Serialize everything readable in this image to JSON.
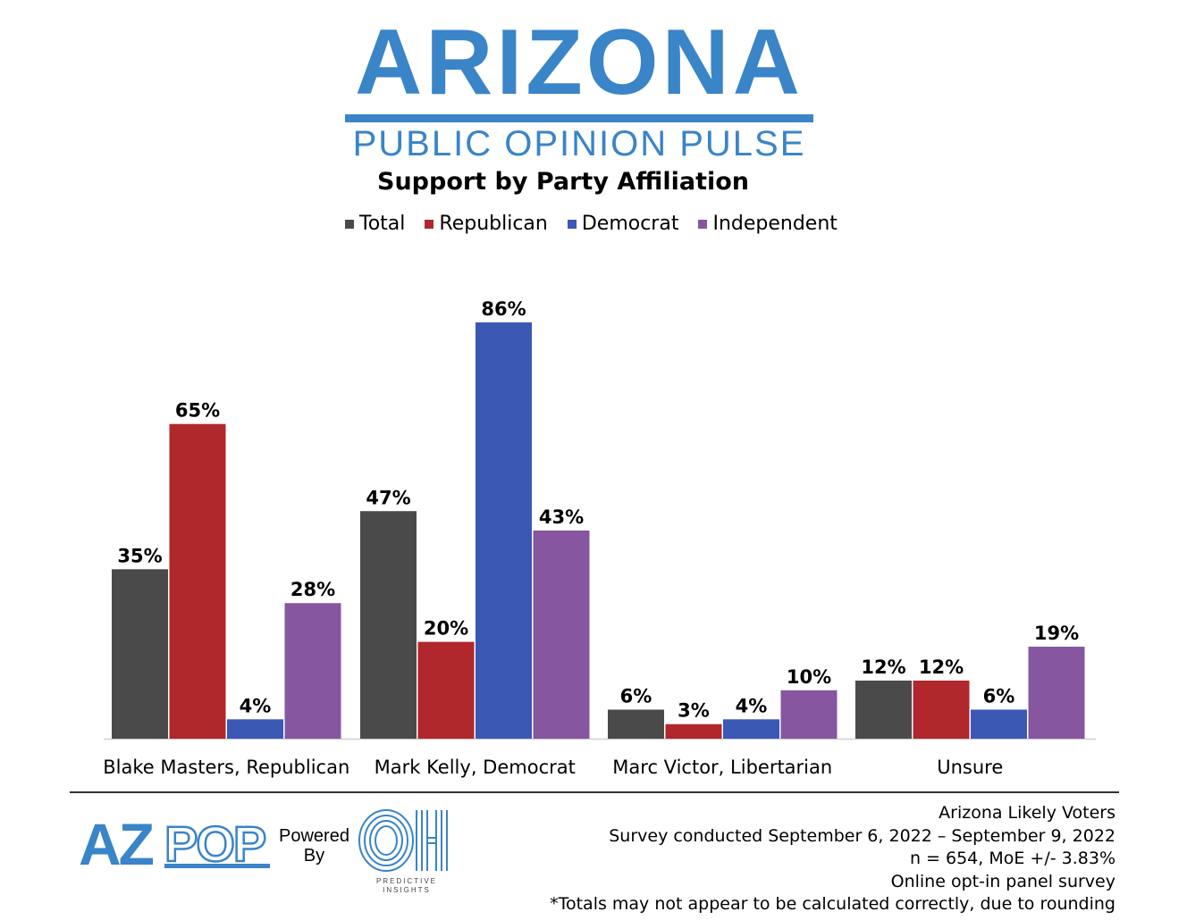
{
  "brand": {
    "title": "ARIZONA",
    "subtitle": "PUBLIC OPINION PULSE",
    "color": "#3a84c8"
  },
  "chart_title": "Support by Party Affiliation",
  "chart_data": {
    "type": "bar",
    "categories": [
      "Blake Masters, Republican",
      "Mark Kelly, Democrat",
      "Marc Victor, Libertarian",
      "Unsure"
    ],
    "series": [
      {
        "name": "Total",
        "color": "#4a4a4a",
        "values": [
          35,
          47,
          6,
          12
        ]
      },
      {
        "name": "Republican",
        "color": "#b0272c",
        "values": [
          65,
          20,
          3,
          12
        ]
      },
      {
        "name": "Democrat",
        "color": "#3a58b4",
        "values": [
          4,
          86,
          4,
          6
        ]
      },
      {
        "name": "Independent",
        "color": "#8656a0",
        "values": [
          28,
          43,
          10,
          19
        ]
      }
    ],
    "value_suffix": "%",
    "ylim": [
      0,
      86
    ],
    "legend": "top",
    "grid": false
  },
  "footer": {
    "logo_az": "AZPOP",
    "powered_by": [
      "Powered",
      "By"
    ],
    "oh_logo": "OH",
    "oh_caption": [
      "PREDICTIVE",
      "INSIGHTS"
    ],
    "notes": [
      "Arizona Likely Voters",
      "Survey conducted September 6, 2022 – September 9, 2022",
      "n = 654, MoE +/- 3.83%",
      "Online opt-in panel survey",
      "*Totals may not appear to be calculated correctly, due to rounding"
    ]
  }
}
